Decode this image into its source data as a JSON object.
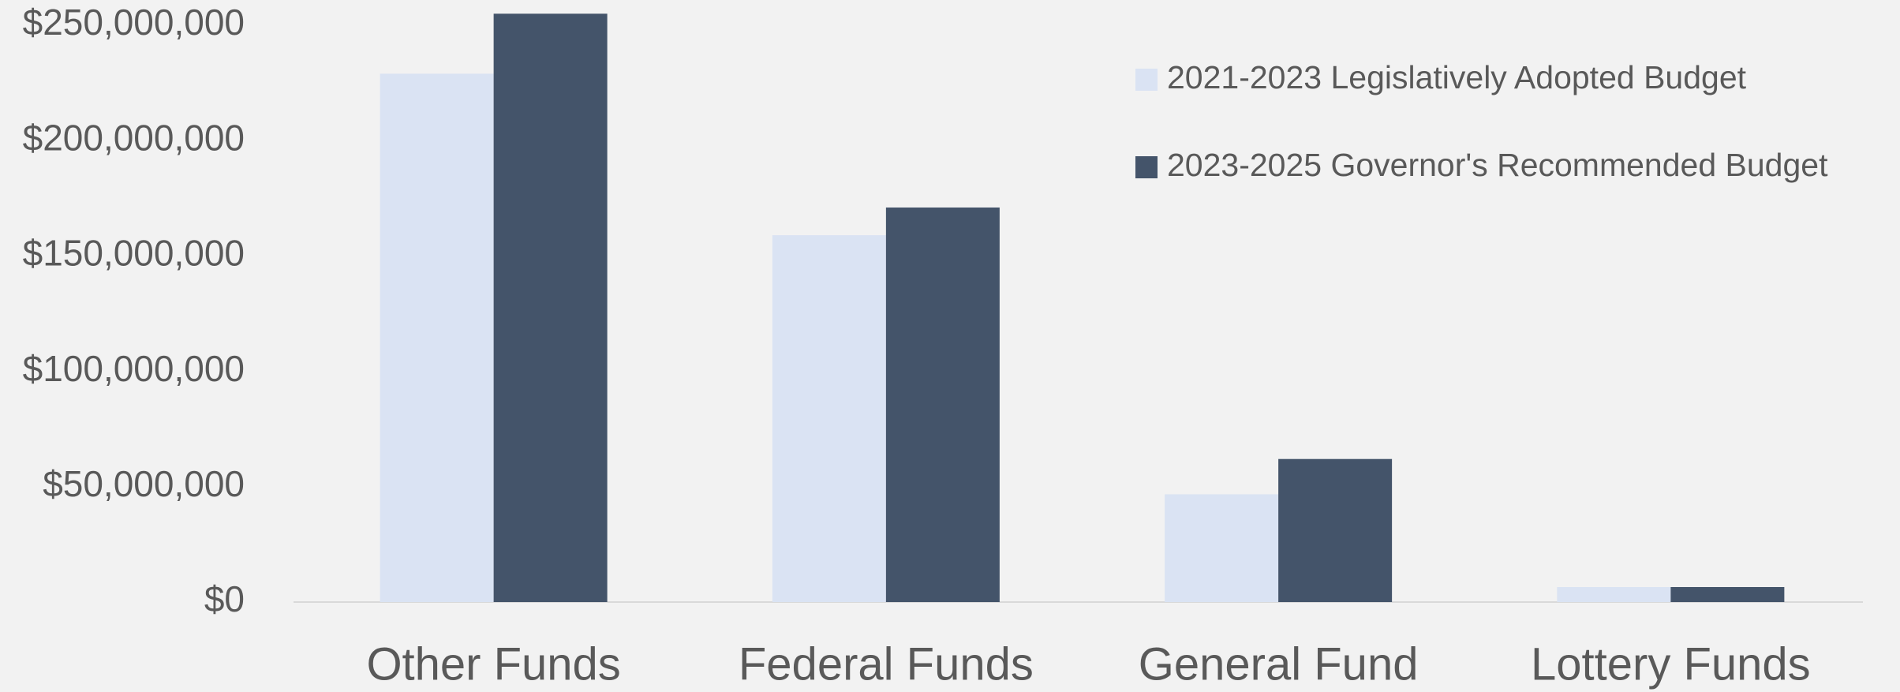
{
  "chart_data": {
    "type": "bar",
    "categories": [
      "Other Funds",
      "Federal Funds",
      "General Fund",
      "Lottery Funds"
    ],
    "series": [
      {
        "name": "2021-2023 Legislatively Adopted Budget",
        "color": "#dae3f3",
        "values": [
          229000000,
          159000000,
          46700000,
          6500000
        ]
      },
      {
        "name": "2023-2025 Governor's Recommended Budget",
        "color": "#44546a",
        "values": [
          255000000,
          171000000,
          62000000,
          6500000
        ]
      }
    ],
    "ylim": [
      0,
      250000000
    ],
    "yticks": [
      {
        "value": 0,
        "label": "$0"
      },
      {
        "value": 50000000,
        "label": "$50,000,000"
      },
      {
        "value": 100000000,
        "label": "$100,000,000"
      },
      {
        "value": 150000000,
        "label": "$150,000,000"
      },
      {
        "value": 200000000,
        "label": "$200,000,000"
      },
      {
        "value": 250000000,
        "label": "$250,000,000"
      }
    ],
    "grid": false,
    "legend": "upper right"
  }
}
